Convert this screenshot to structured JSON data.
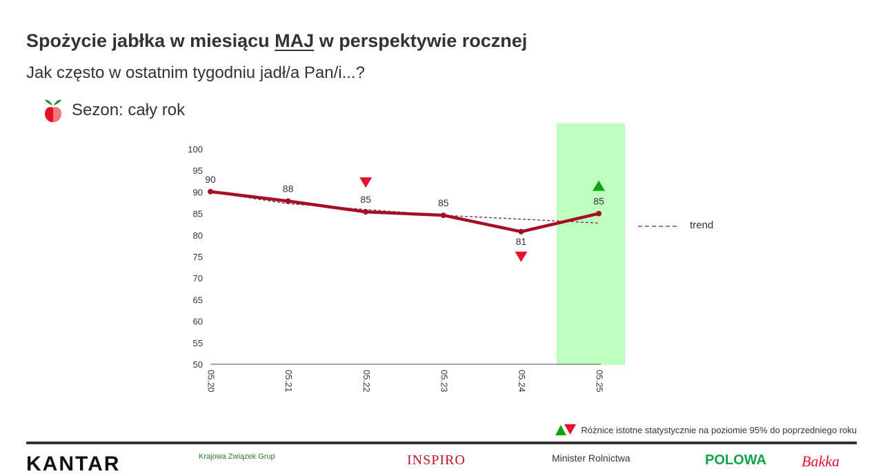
{
  "header": {
    "title_before": "Spożycie jabłka w miesiącu ",
    "title_month": "MAJ",
    "title_after": " w perspektywie rocznej",
    "subtitle": "Jak często w ostatnim tygodniu jadł/a Pan/i...?",
    "season_label": "Sezon: cały rok",
    "season_icon": "apple-icon"
  },
  "chart_data": {
    "type": "line",
    "categories": [
      "05.20",
      "05.21",
      "05.22",
      "05.23",
      "05.24",
      "05.25"
    ],
    "series": [
      {
        "values": [
          90.1,
          87.9,
          85.4,
          84.6,
          80.8,
          85.0
        ],
        "color": "#a50f23"
      },
      {
        "name": "trend",
        "values": [
          90.0,
          87.3,
          null,
          84.6,
          null,
          82.8
        ],
        "style": "dashed",
        "color": "#6b2a3a"
      }
    ],
    "data_labels": [
      "90",
      "88",
      "85",
      "85",
      "81",
      "85"
    ],
    "significance_markers": [
      {
        "category": "05.22",
        "direction": "down",
        "color": "#e8112d"
      },
      {
        "category": "05.24",
        "direction": "down",
        "color": "#e8112d"
      },
      {
        "category": "05.25",
        "direction": "up",
        "color": "#0fa30f"
      }
    ],
    "highlight_category": "05.25",
    "highlight_color": "#bfffbf",
    "ylim": [
      50,
      100
    ],
    "yticks": [
      100,
      95,
      90,
      85,
      80,
      75,
      70,
      65,
      60,
      55,
      50
    ],
    "legend": {
      "label": "trend",
      "placement": "right"
    },
    "grid": false
  },
  "footnote": {
    "text": "Różnice istotne statystycznie na poziomie 95% do poprzedniego roku",
    "up_color": "#0fa30f",
    "down_color": "#e8112d"
  },
  "logos": [
    "KANTAR",
    "Krajowa Związek Grup",
    "INSPIRO",
    "Minister Rolnictwa",
    "POLOWA",
    "Bakka"
  ]
}
